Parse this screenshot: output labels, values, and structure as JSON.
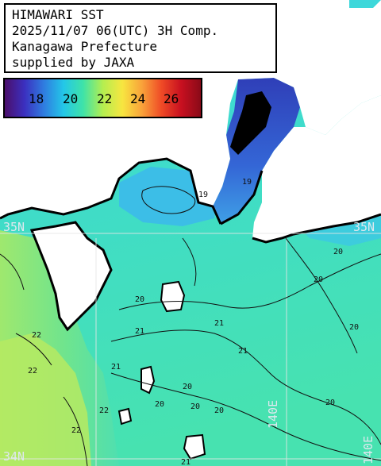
{
  "title": {
    "line1": "HIMAWARI SST",
    "line2": "2025/11/07 06(UTC) 3H Comp.",
    "line3": "Kanagawa Prefecture",
    "line4": "supplied by JAXA"
  },
  "legend": {
    "labels": [
      "18",
      "20",
      "22",
      "24",
      "26"
    ],
    "colors": [
      "#4b0f6b",
      "#3b2fbf",
      "#2f7de0",
      "#23c7e8",
      "#3fe3a8",
      "#b4ee50",
      "#f7e640",
      "#f9a23a",
      "#ef4a26",
      "#c81020",
      "#8a0a18"
    ]
  },
  "grid": {
    "lat_labels": [
      "35N",
      "35N",
      "34N"
    ],
    "lon_labels": [
      "140E",
      "140E"
    ]
  },
  "contours": {
    "labels": [
      "19",
      "19",
      "20",
      "20",
      "20",
      "20",
      "20",
      "20",
      "20",
      "21",
      "21",
      "21",
      "22",
      "22",
      "22",
      "20",
      "20",
      "21",
      "22",
      "21"
    ]
  },
  "colors": {
    "land": "#ffffff",
    "coast": "#000000",
    "grid": "#e6e6e6"
  }
}
